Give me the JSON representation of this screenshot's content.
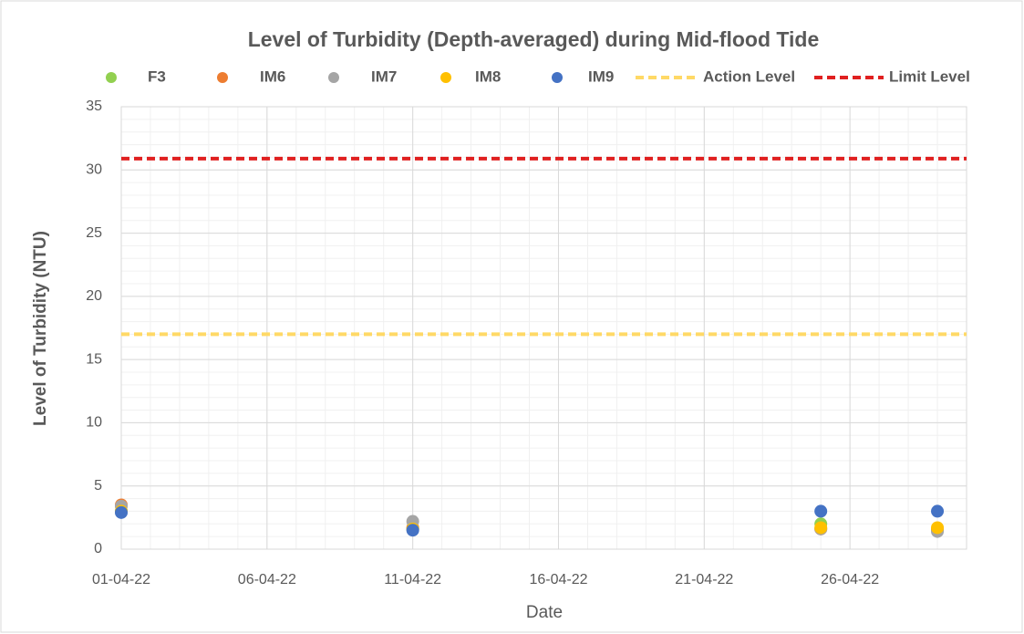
{
  "chart_data": {
    "type": "scatter",
    "title": "Level of Turbidity (Depth-averaged) during Mid-flood Tide",
    "x_label": "Date",
    "y_label": "Level of Turbidity (NTU)",
    "xlim": [
      "01-04-22",
      "30-04-22"
    ],
    "xticks": [
      "01-04-22",
      "06-04-22",
      "11-04-22",
      "16-04-22",
      "21-04-22",
      "26-04-22"
    ],
    "ylim": [
      0,
      35
    ],
    "yticks": [
      0,
      5,
      10,
      15,
      20,
      25,
      30,
      35
    ],
    "grid": true,
    "minor_grid": true,
    "legend": "top",
    "series": [
      {
        "name": "F3",
        "color": "#92d050",
        "x": [
          "01-04-22",
          "11-04-22",
          "25-04-22",
          "29-04-22"
        ],
        "values": [
          3.0,
          1.6,
          2.0,
          1.5
        ]
      },
      {
        "name": "IM6",
        "color": "#ed7d31",
        "x": [
          "01-04-22",
          "11-04-22",
          "25-04-22",
          "29-04-22"
        ],
        "values": [
          3.5,
          1.7,
          1.6,
          1.6
        ]
      },
      {
        "name": "IM7",
        "color": "#a5a5a5",
        "x": [
          "01-04-22",
          "11-04-22",
          "25-04-22",
          "29-04-22"
        ],
        "values": [
          3.4,
          2.2,
          1.6,
          1.4
        ]
      },
      {
        "name": "IM8",
        "color": "#ffc000",
        "x": [
          "01-04-22",
          "11-04-22",
          "25-04-22",
          "29-04-22"
        ],
        "values": [
          3.0,
          1.6,
          1.7,
          1.7
        ]
      },
      {
        "name": "IM9",
        "color": "#4472c4",
        "x": [
          "01-04-22",
          "11-04-22",
          "25-04-22",
          "29-04-22"
        ],
        "values": [
          2.9,
          1.5,
          3.0,
          3.0
        ]
      },
      {
        "name": "Action Level",
        "type": "line",
        "dashed": true,
        "color": "#ffd966",
        "x": [
          "01-04-22",
          "30-04-22"
        ],
        "values": [
          17,
          17
        ]
      },
      {
        "name": "Limit Level",
        "type": "line",
        "dashed": true,
        "color": "#e02020",
        "x": [
          "01-04-22",
          "30-04-22"
        ],
        "values": [
          30.9,
          30.9
        ]
      }
    ]
  }
}
